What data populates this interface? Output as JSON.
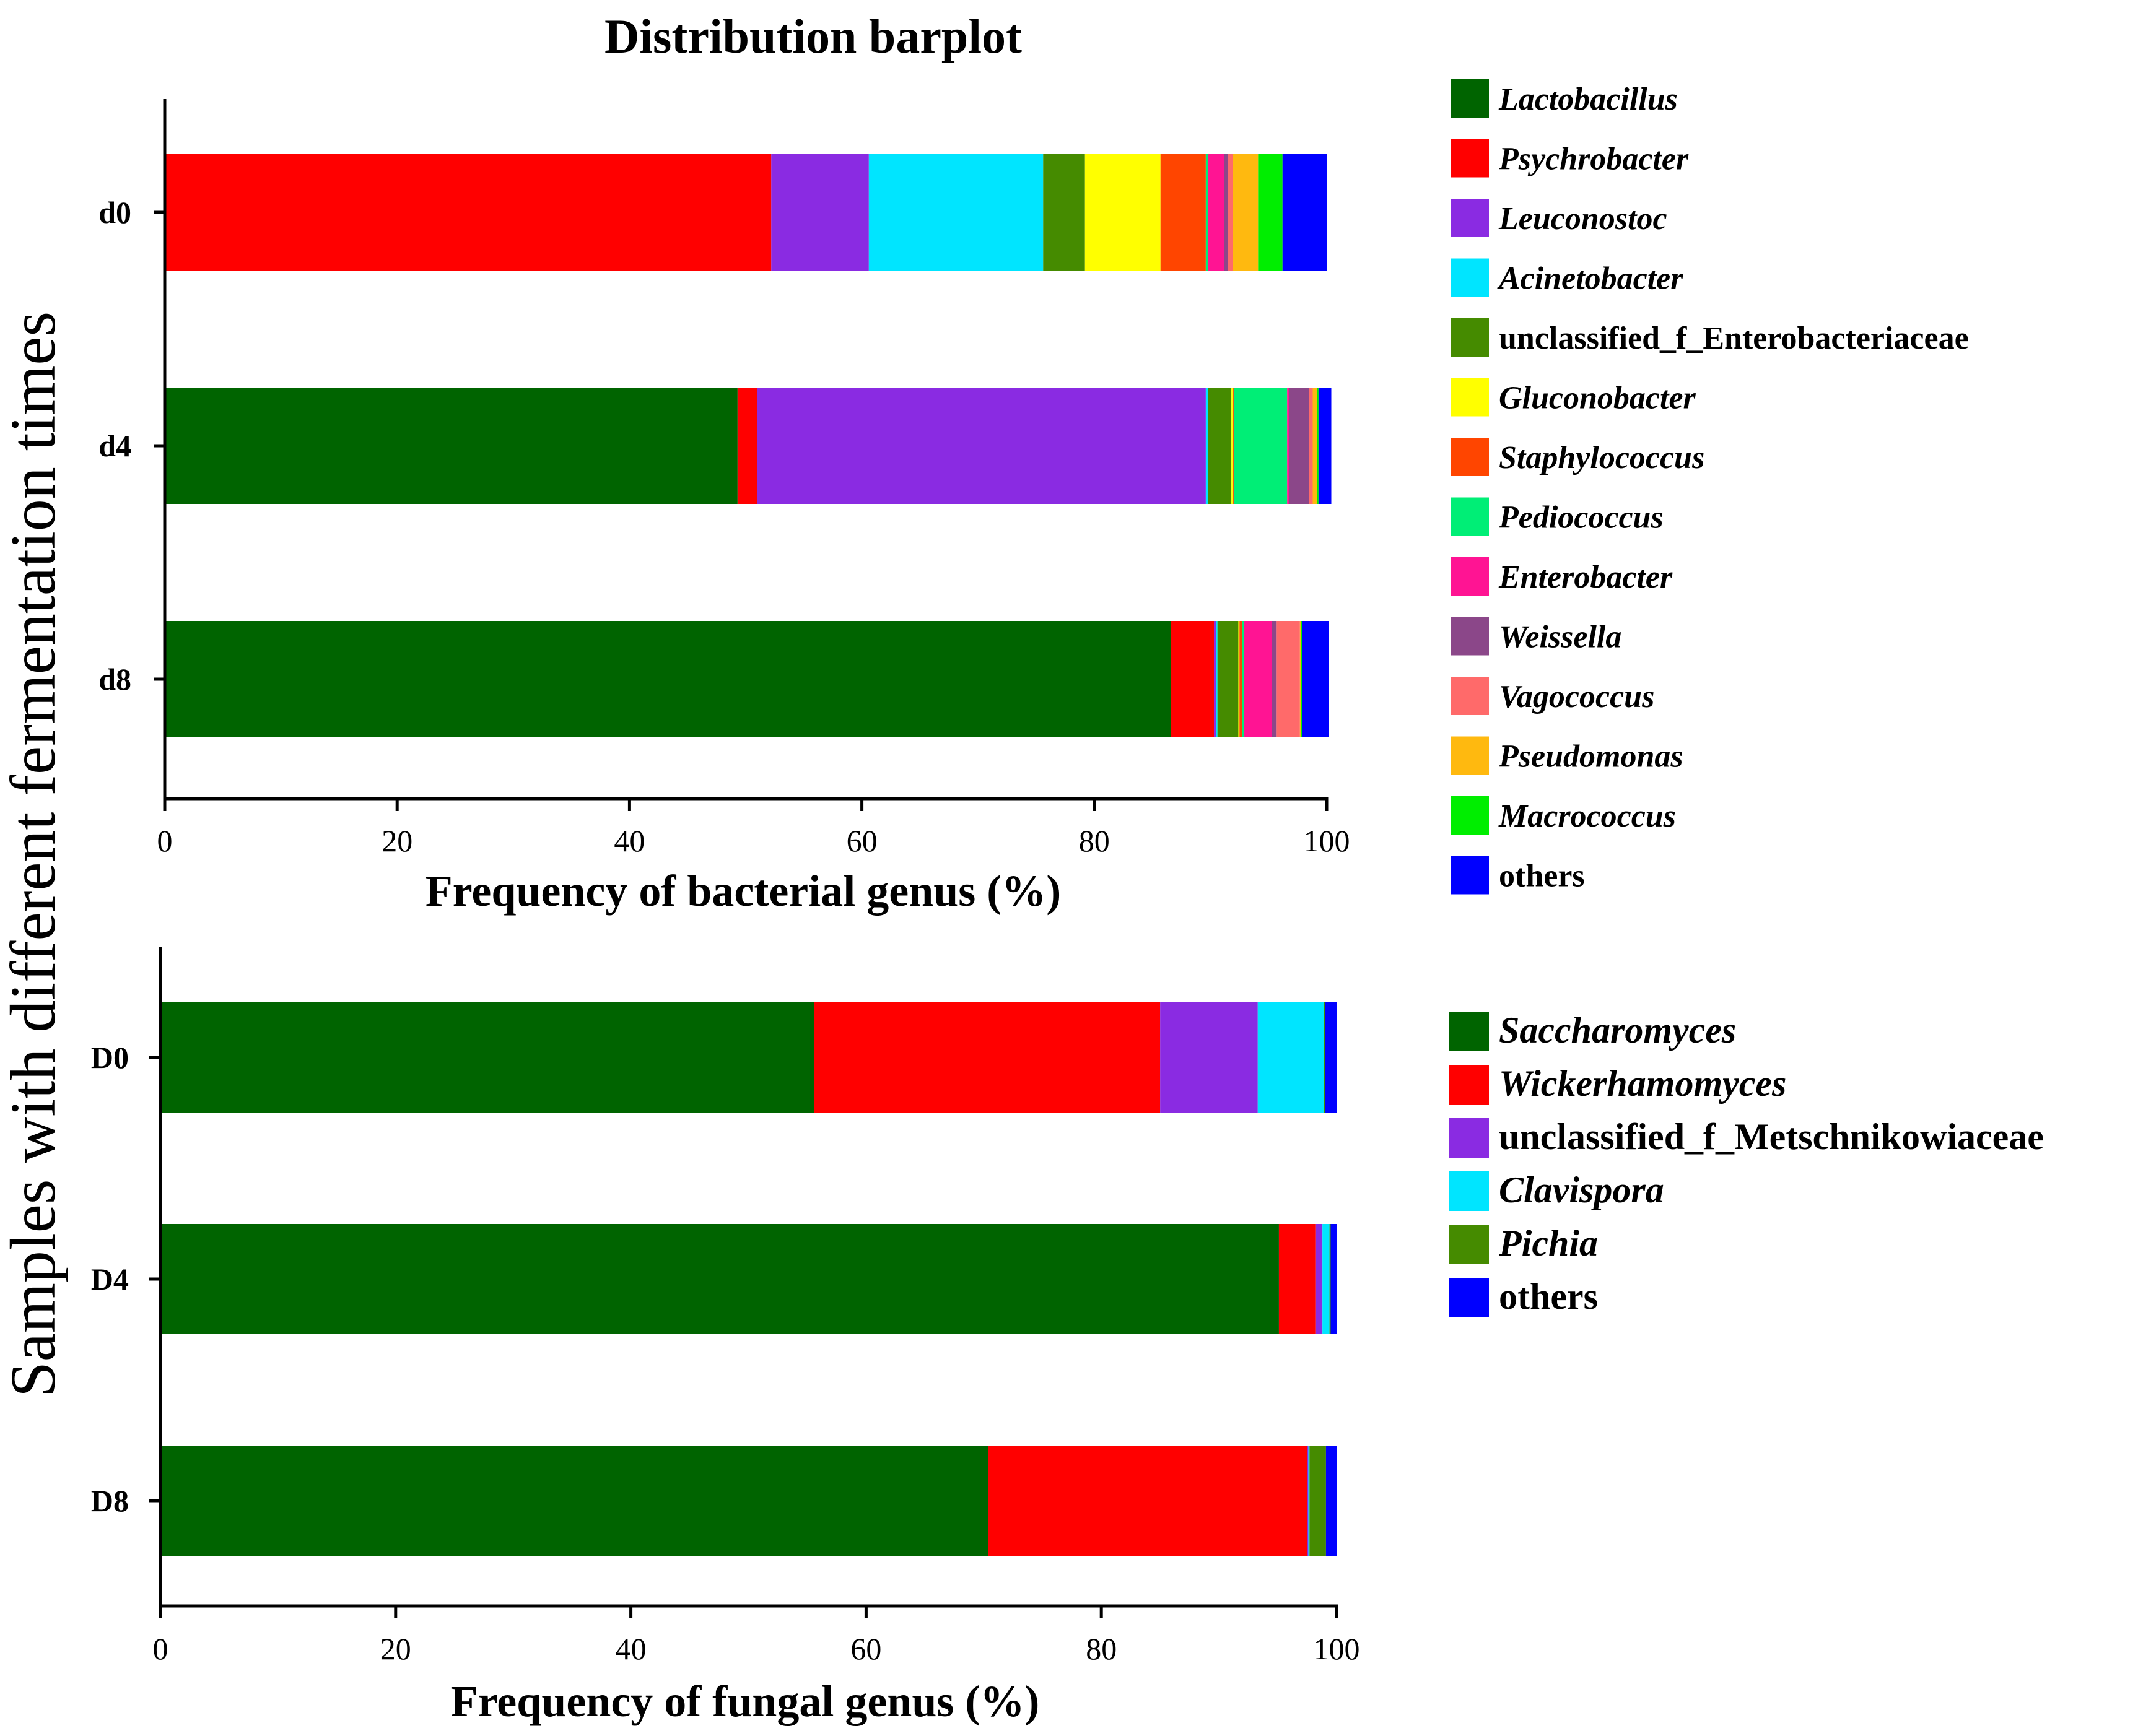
{
  "title": "Distribution barplot",
  "shared_ylabel": "Samples with different fermentation times",
  "chart_data": [
    {
      "type": "bar",
      "orientation": "horizontal",
      "stacked": true,
      "xlabel": "Frequency of bacterial genus (%)",
      "xlim": [
        0,
        100
      ],
      "xticks": [
        "0",
        "20",
        "40",
        "60",
        "80",
        "100"
      ],
      "categories": [
        "d0",
        "d4",
        "d8"
      ],
      "series": [
        {
          "name": "Lactobacillus",
          "italic": true,
          "color": "#006400",
          "values": [
            0,
            49.3,
            86.6
          ]
        },
        {
          "name": "Psychrobacter",
          "italic": true,
          "color": "#ff0000",
          "values": [
            52.2,
            1.7,
            3.7
          ]
        },
        {
          "name": "Leuconostoc",
          "italic": true,
          "color": "#8a2be2",
          "values": [
            8.4,
            38.6,
            0.2
          ]
        },
        {
          "name": "Acinetobacter",
          "italic": true,
          "color": "#00e5ff",
          "values": [
            15.0,
            0.2,
            0.1
          ]
        },
        {
          "name": "unclassified_f_Enterobacteriaceae",
          "italic": false,
          "color": "#458b00",
          "values": [
            3.6,
            2.0,
            1.8
          ]
        },
        {
          "name": "Gluconobacter",
          "italic": true,
          "color": "#ffff00",
          "values": [
            6.5,
            0.1,
            0.1
          ]
        },
        {
          "name": "Staphylococcus",
          "italic": true,
          "color": "#ff4500",
          "values": [
            3.9,
            0.1,
            0.2
          ]
        },
        {
          "name": "Pediococcus",
          "italic": true,
          "color": "#00ee76",
          "values": [
            0.2,
            4.6,
            0.2
          ]
        },
        {
          "name": "Enterobacter",
          "italic": true,
          "color": "#ff1493",
          "values": [
            1.4,
            0.2,
            2.4
          ]
        },
        {
          "name": "Weissella",
          "italic": true,
          "color": "#8b4789",
          "values": [
            0.3,
            1.7,
            0.4
          ]
        },
        {
          "name": "Vagococcus",
          "italic": true,
          "color": "#ff6a6a",
          "values": [
            0.4,
            0.3,
            2.0
          ]
        },
        {
          "name": "Pseudomonas",
          "italic": true,
          "color": "#ffb90f",
          "values": [
            2.2,
            0.4,
            0.1
          ]
        },
        {
          "name": "Macrococcus",
          "italic": true,
          "color": "#00ee00",
          "values": [
            2.1,
            0.1,
            0.1
          ]
        },
        {
          "name": "others",
          "italic": false,
          "color": "#0000ff",
          "values": [
            3.8,
            1.1,
            2.3
          ]
        }
      ]
    },
    {
      "type": "bar",
      "orientation": "horizontal",
      "stacked": true,
      "xlabel": "Frequency of fungal genus (%)",
      "xlim": [
        0,
        100
      ],
      "xticks": [
        "0",
        "20",
        "40",
        "60",
        "80",
        "100"
      ],
      "categories": [
        "D0",
        "D4",
        "D8"
      ],
      "series": [
        {
          "name": "Saccharomyces",
          "italic": true,
          "color": "#006400",
          "values": [
            55.6,
            95.1,
            70.4
          ]
        },
        {
          "name": "Wickerhamomyces",
          "italic": true,
          "color": "#ff0000",
          "values": [
            29.4,
            3.1,
            27.1
          ]
        },
        {
          "name": "unclassified_f_Metschnikowiaceae",
          "italic": false,
          "color": "#8a2be2",
          "values": [
            8.3,
            0.6,
            0.1
          ]
        },
        {
          "name": "Clavispora",
          "italic": true,
          "color": "#00e5ff",
          "values": [
            5.6,
            0.6,
            0.1
          ]
        },
        {
          "name": "Pichia",
          "italic": true,
          "color": "#458b00",
          "values": [
            0.1,
            0.1,
            1.4
          ]
        },
        {
          "name": "others",
          "italic": false,
          "color": "#0000ff",
          "values": [
            1.0,
            0.5,
            0.9
          ]
        }
      ]
    }
  ]
}
